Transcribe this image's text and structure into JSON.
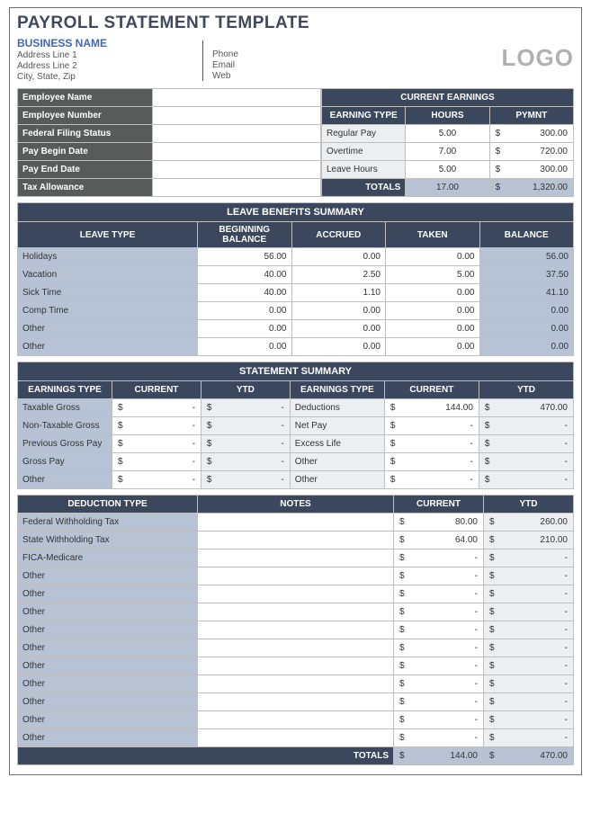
{
  "title": "PAYROLL STATEMENT TEMPLATE",
  "business": {
    "name": "BUSINESS NAME",
    "addr1": "Address Line 1",
    "addr2": "Address Line 2",
    "csz": "City, State, Zip",
    "phone": "Phone",
    "email": "Email",
    "web": "Web"
  },
  "logo": "LOGO",
  "emp_fields": {
    "name_lbl": "Employee Name",
    "num_lbl": "Employee Number",
    "filing_lbl": "Federal Filing Status",
    "begin_lbl": "Pay Begin Date",
    "end_lbl": "Pay End Date",
    "tax_lbl": "Tax Allowance"
  },
  "current_earnings": {
    "banner": "CURRENT EARNINGS",
    "cols": {
      "type": "EARNING TYPE",
      "hours": "HOURS",
      "pymnt": "PYMNT"
    },
    "rows": [
      {
        "type": "Regular Pay",
        "hours": "5.00",
        "pymnt": "300.00"
      },
      {
        "type": "Overtime",
        "hours": "7.00",
        "pymnt": "720.00"
      },
      {
        "type": "Leave Hours",
        "hours": "5.00",
        "pymnt": "300.00"
      }
    ],
    "totals_lbl": "TOTALS",
    "totals_hours": "17.00",
    "totals_pymnt": "1,320.00"
  },
  "leave": {
    "banner": "LEAVE BENEFITS SUMMARY",
    "cols": {
      "type": "LEAVE TYPE",
      "beg": "BEGINNING BALANCE",
      "acc": "ACCRUED",
      "taken": "TAKEN",
      "bal": "BALANCE"
    },
    "rows": [
      {
        "type": "Holidays",
        "beg": "56.00",
        "acc": "0.00",
        "taken": "0.00",
        "bal": "56.00"
      },
      {
        "type": "Vacation",
        "beg": "40.00",
        "acc": "2.50",
        "taken": "5.00",
        "bal": "37.50"
      },
      {
        "type": "Sick Time",
        "beg": "40.00",
        "acc": "1.10",
        "taken": "0.00",
        "bal": "41.10"
      },
      {
        "type": "Comp Time",
        "beg": "0.00",
        "acc": "0.00",
        "taken": "0.00",
        "bal": "0.00"
      },
      {
        "type": "Other",
        "beg": "0.00",
        "acc": "0.00",
        "taken": "0.00",
        "bal": "0.00"
      },
      {
        "type": "Other",
        "beg": "0.00",
        "acc": "0.00",
        "taken": "0.00",
        "bal": "0.00"
      }
    ]
  },
  "statement": {
    "banner": "STATEMENT SUMMARY",
    "cols": {
      "etype": "EARNINGS TYPE",
      "cur": "CURRENT",
      "ytd": "YTD"
    },
    "left": [
      {
        "type": "Taxable Gross",
        "cur": "-",
        "ytd": "-"
      },
      {
        "type": "Non-Taxable Gross",
        "cur": "-",
        "ytd": "-"
      },
      {
        "type": "Previous Gross Pay",
        "cur": "-",
        "ytd": "-"
      },
      {
        "type": "Gross Pay",
        "cur": "-",
        "ytd": "-"
      },
      {
        "type": "Other",
        "cur": "-",
        "ytd": "-"
      }
    ],
    "right": [
      {
        "type": "Deductions",
        "cur": "144.00",
        "ytd": "470.00"
      },
      {
        "type": "Net Pay",
        "cur": "-",
        "ytd": "-"
      },
      {
        "type": "Excess Life",
        "cur": "-",
        "ytd": "-"
      },
      {
        "type": "Other",
        "cur": "-",
        "ytd": "-"
      },
      {
        "type": "Other",
        "cur": "-",
        "ytd": "-"
      }
    ]
  },
  "deductions": {
    "cols": {
      "type": "DEDUCTION TYPE",
      "notes": "NOTES",
      "cur": "CURRENT",
      "ytd": "YTD"
    },
    "rows": [
      {
        "type": "Federal Withholding Tax",
        "notes": "",
        "cur": "80.00",
        "ytd": "260.00"
      },
      {
        "type": "State Withholding Tax",
        "notes": "",
        "cur": "64.00",
        "ytd": "210.00"
      },
      {
        "type": "FICA-Medicare",
        "notes": "",
        "cur": "-",
        "ytd": "-"
      },
      {
        "type": "Other",
        "notes": "",
        "cur": "-",
        "ytd": "-"
      },
      {
        "type": "Other",
        "notes": "",
        "cur": "-",
        "ytd": "-"
      },
      {
        "type": "Other",
        "notes": "",
        "cur": "-",
        "ytd": "-"
      },
      {
        "type": "Other",
        "notes": "",
        "cur": "-",
        "ytd": "-"
      },
      {
        "type": "Other",
        "notes": "",
        "cur": "-",
        "ytd": "-"
      },
      {
        "type": "Other",
        "notes": "",
        "cur": "-",
        "ytd": "-"
      },
      {
        "type": "Other",
        "notes": "",
        "cur": "-",
        "ytd": "-"
      },
      {
        "type": "Other",
        "notes": "",
        "cur": "-",
        "ytd": "-"
      },
      {
        "type": "Other",
        "notes": "",
        "cur": "-",
        "ytd": "-"
      },
      {
        "type": "Other",
        "notes": "",
        "cur": "-",
        "ytd": "-"
      }
    ],
    "totals_lbl": "TOTALS",
    "totals_cur": "144.00",
    "totals_ytd": "470.00"
  },
  "currency": "$"
}
